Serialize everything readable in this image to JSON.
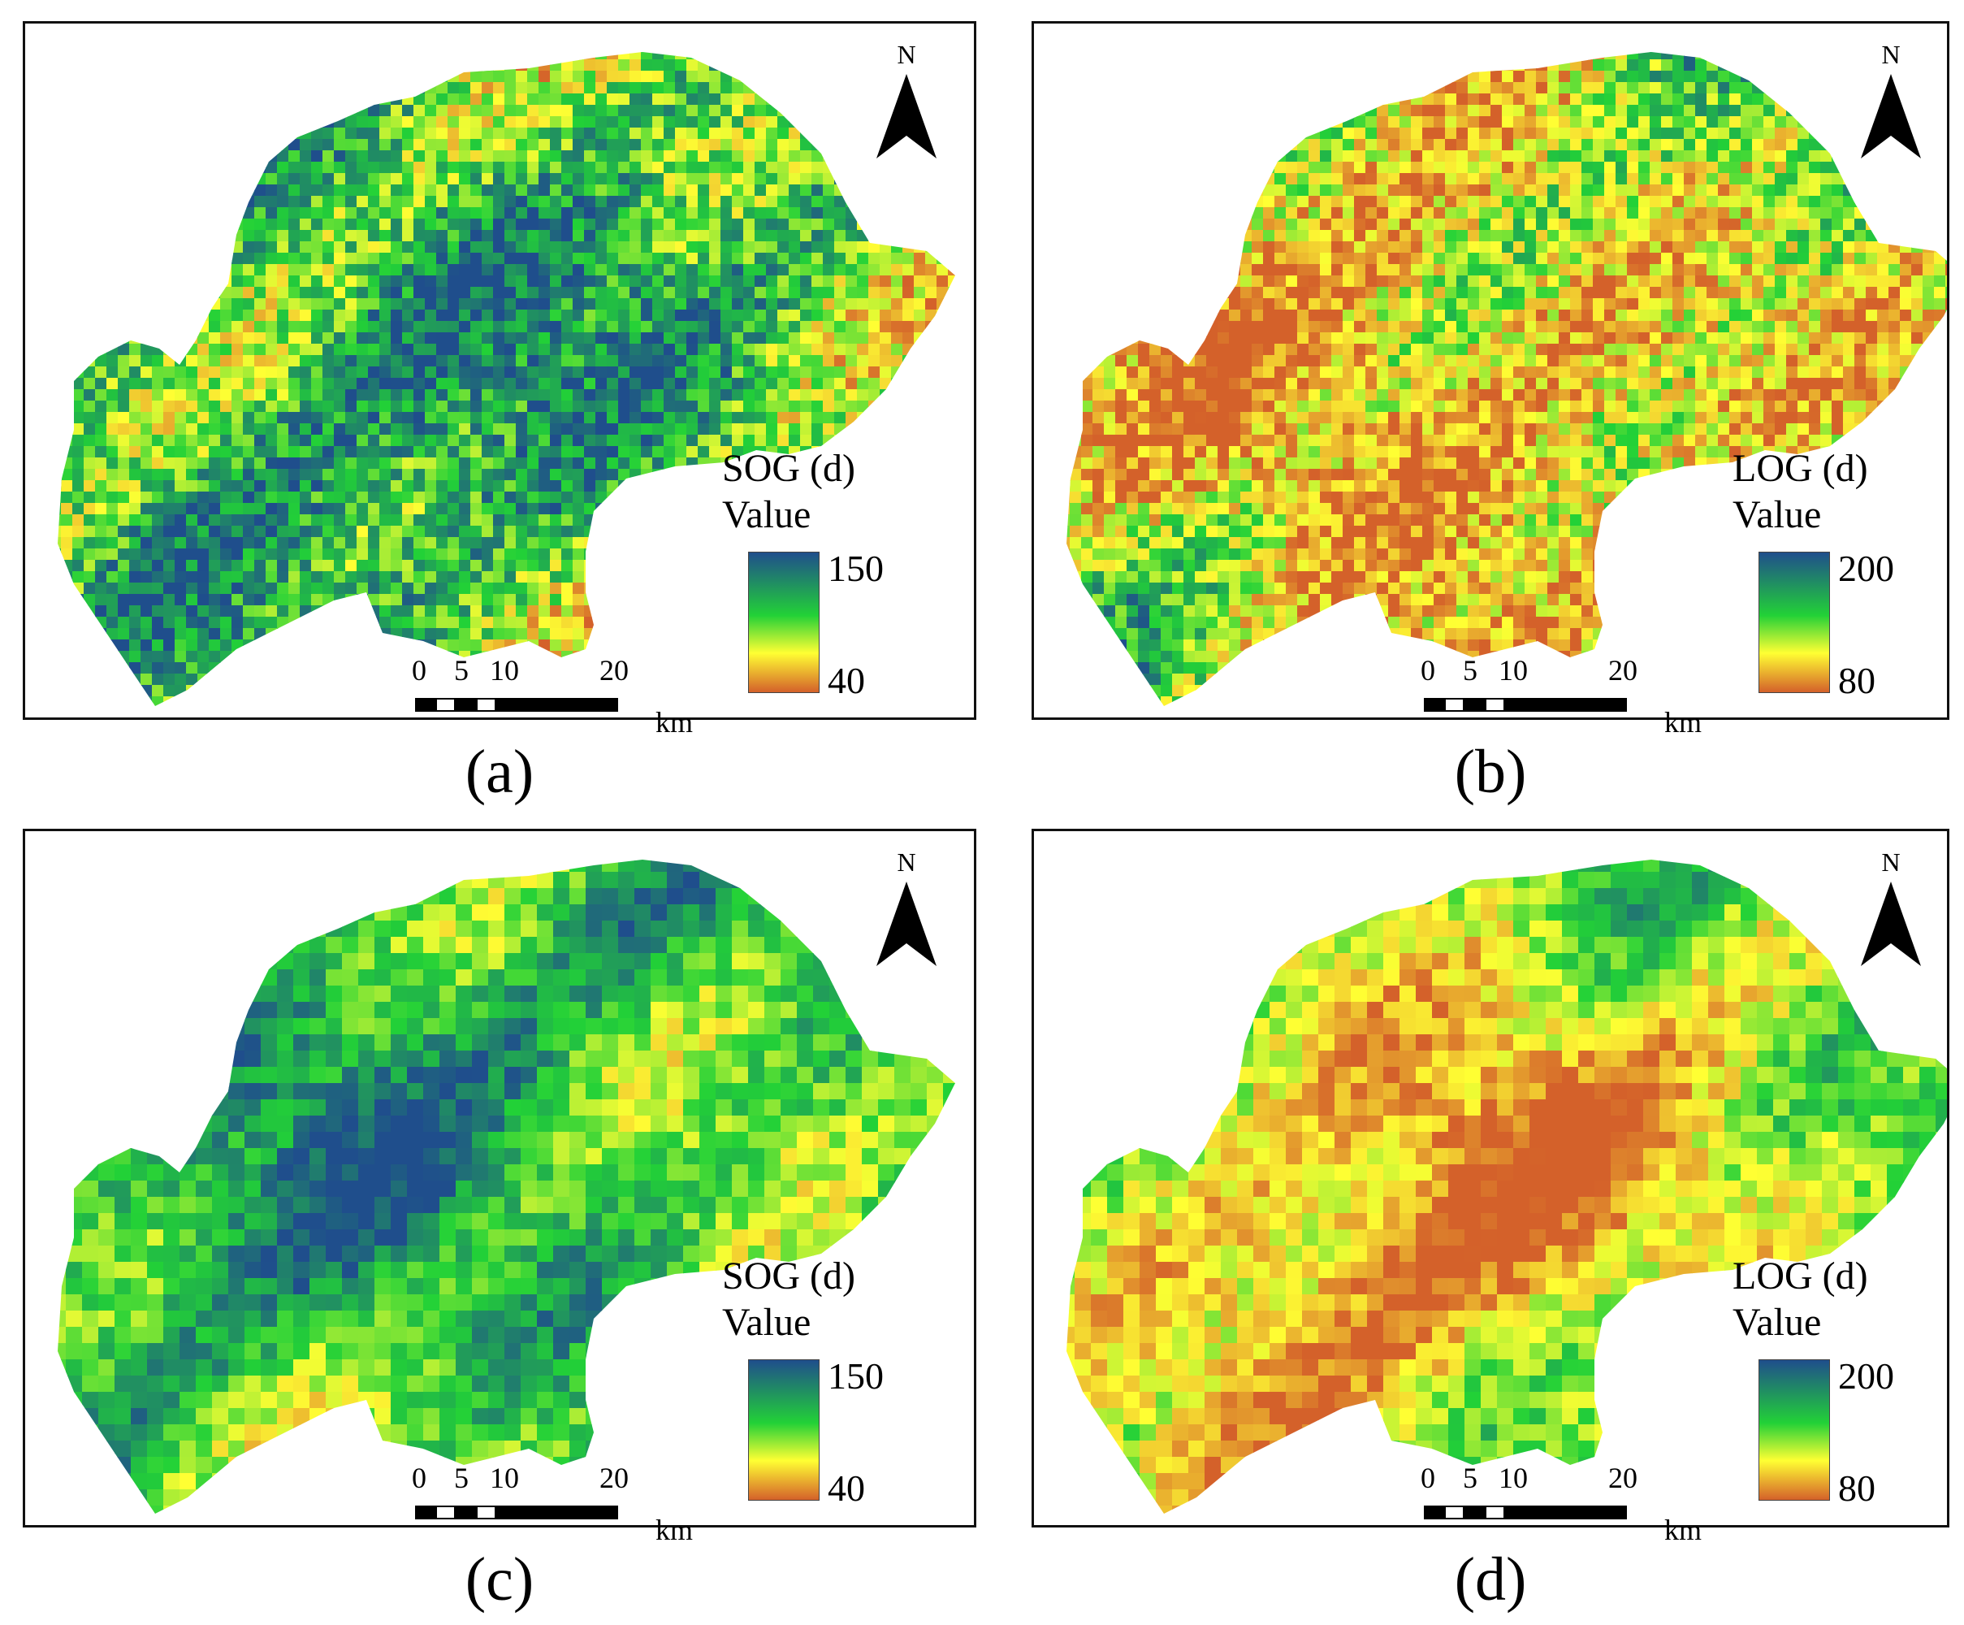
{
  "north_label": "N",
  "scale": {
    "ticks": [
      "0",
      "5",
      "10",
      "20"
    ],
    "unit": "km"
  },
  "colors": {
    "low": "#d4612a",
    "mid_low": "#ffff33",
    "mid": "#22d137",
    "high": "#1f4e8c"
  },
  "panels": [
    {
      "caption": "(a)",
      "legend_title": "SOG (d)",
      "legend_subtitle": "Value",
      "max": "150",
      "min": "40",
      "pattern": "sog_fine"
    },
    {
      "caption": "(b)",
      "legend_title": "LOG (d)",
      "legend_subtitle": "Value",
      "max": "200",
      "min": "80",
      "pattern": "log_fine"
    },
    {
      "caption": "(c)",
      "legend_title": "SOG (d)",
      "legend_subtitle": "Value",
      "max": "150",
      "min": "40",
      "pattern": "sog_coarse"
    },
    {
      "caption": "(d)",
      "legend_title": "LOG (d)",
      "legend_subtitle": "Value",
      "max": "200",
      "min": "80",
      "pattern": "log_coarse"
    }
  ]
}
